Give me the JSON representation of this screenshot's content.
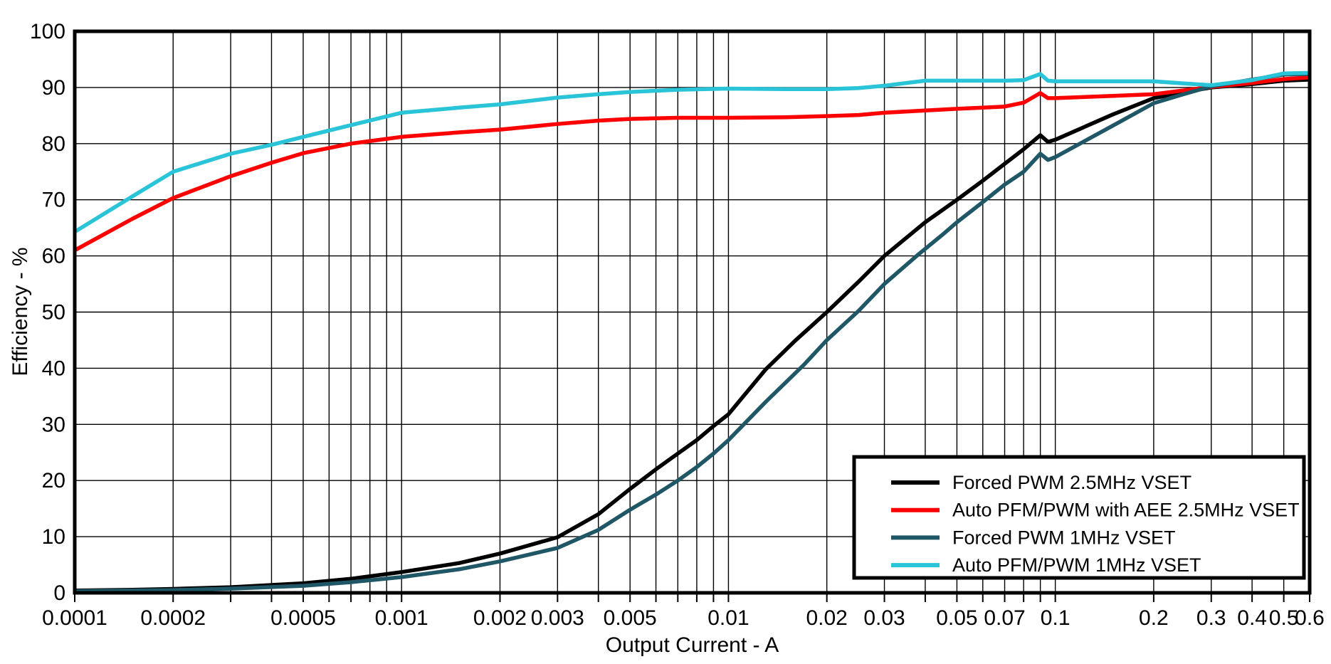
{
  "figure": {
    "background": "#ffffff",
    "grid_color": "#000000",
    "border_color": "#000000",
    "x_axis": {
      "title": "Output Current - A",
      "scale": "log",
      "min": 0.0001,
      "max": 0.6,
      "ticks": [
        {
          "v": 0.0001,
          "label": "0.0001"
        },
        {
          "v": 0.0002,
          "label": "0.0002"
        },
        {
          "v": 0.0005,
          "label": "0.0005"
        },
        {
          "v": 0.001,
          "label": "0.001"
        },
        {
          "v": 0.002,
          "label": "0.002"
        },
        {
          "v": 0.003,
          "label": "0.003"
        },
        {
          "v": 0.005,
          "label": "0.005"
        },
        {
          "v": 0.01,
          "label": "0.01"
        },
        {
          "v": 0.02,
          "label": "0.02"
        },
        {
          "v": 0.03,
          "label": "0.03"
        },
        {
          "v": 0.05,
          "label": "0.05"
        },
        {
          "v": 0.07,
          "label": "0.07"
        },
        {
          "v": 0.1,
          "label": "0.1"
        },
        {
          "v": 0.2,
          "label": "0.2"
        },
        {
          "v": 0.3,
          "label": "0.3"
        },
        {
          "v": 0.4,
          "label": "0.4"
        },
        {
          "v": 0.5,
          "label": "0.5"
        },
        {
          "v": 0.6,
          "label": "0.6"
        }
      ]
    },
    "y_axis": {
      "title": "Efficiency - %",
      "min": 0,
      "max": 100,
      "tick_step": 10,
      "tick_labels": [
        "0",
        "10",
        "20",
        "30",
        "40",
        "50",
        "60",
        "70",
        "80",
        "90",
        "100"
      ]
    }
  },
  "chart_data": {
    "type": "line",
    "title": "",
    "xlabel": "Output Current - A",
    "ylabel": "Efficiency - %",
    "x_scale": "log",
    "xlim": [
      0.0001,
      0.6
    ],
    "ylim": [
      0,
      100
    ],
    "grid": true,
    "legend_position": "inside lower right",
    "series": [
      {
        "name": "Forced PWM 2.5MHz VSET",
        "color": "#000000",
        "points": [
          [
            0.0001,
            0.4
          ],
          [
            0.00015,
            0.55
          ],
          [
            0.0002,
            0.7
          ],
          [
            0.0003,
            1.0
          ],
          [
            0.0005,
            1.7
          ],
          [
            0.0007,
            2.5
          ],
          [
            0.001,
            3.7
          ],
          [
            0.0015,
            5.3
          ],
          [
            0.002,
            7.0
          ],
          [
            0.003,
            9.9
          ],
          [
            0.004,
            14.0
          ],
          [
            0.005,
            18.5
          ],
          [
            0.006,
            22.0
          ],
          [
            0.007,
            24.8
          ],
          [
            0.008,
            27.2
          ],
          [
            0.009,
            29.7
          ],
          [
            0.01,
            31.8
          ],
          [
            0.013,
            39.8
          ],
          [
            0.016,
            44.9
          ],
          [
            0.02,
            50.0
          ],
          [
            0.025,
            55.4
          ],
          [
            0.03,
            60.0
          ],
          [
            0.04,
            66.0
          ],
          [
            0.05,
            70.0
          ],
          [
            0.06,
            73.4
          ],
          [
            0.07,
            76.4
          ],
          [
            0.08,
            79.0
          ],
          [
            0.09,
            81.5
          ],
          [
            0.095,
            80.3
          ],
          [
            0.1,
            80.7
          ],
          [
            0.15,
            85.2
          ],
          [
            0.2,
            88.1
          ],
          [
            0.25,
            89.2
          ],
          [
            0.3,
            90.0
          ],
          [
            0.4,
            90.6
          ],
          [
            0.5,
            91.2
          ],
          [
            0.6,
            91.4
          ]
        ]
      },
      {
        "name": "Auto PFM/PWM with AEE 2.5MHz VSET",
        "color": "#fe0000",
        "points": [
          [
            0.0001,
            61.0
          ],
          [
            0.00015,
            66.6
          ],
          [
            0.0002,
            70.3
          ],
          [
            0.0003,
            74.2
          ],
          [
            0.0004,
            76.6
          ],
          [
            0.0005,
            78.3
          ],
          [
            0.0007,
            80.0
          ],
          [
            0.001,
            81.2
          ],
          [
            0.0015,
            82.0
          ],
          [
            0.002,
            82.5
          ],
          [
            0.003,
            83.5
          ],
          [
            0.004,
            84.1
          ],
          [
            0.005,
            84.4
          ],
          [
            0.007,
            84.6
          ],
          [
            0.01,
            84.6
          ],
          [
            0.015,
            84.7
          ],
          [
            0.02,
            84.9
          ],
          [
            0.025,
            85.1
          ],
          [
            0.03,
            85.5
          ],
          [
            0.04,
            85.9
          ],
          [
            0.05,
            86.2
          ],
          [
            0.06,
            86.4
          ],
          [
            0.07,
            86.6
          ],
          [
            0.08,
            87.3
          ],
          [
            0.09,
            89.0
          ],
          [
            0.095,
            88.1
          ],
          [
            0.1,
            88.1
          ],
          [
            0.15,
            88.5
          ],
          [
            0.2,
            88.8
          ],
          [
            0.3,
            90.1
          ],
          [
            0.4,
            90.8
          ],
          [
            0.5,
            91.5
          ],
          [
            0.6,
            91.8
          ]
        ]
      },
      {
        "name": "Forced PWM 1MHz VSET",
        "color": "#1f5766",
        "points": [
          [
            0.0001,
            0.3
          ],
          [
            0.0002,
            0.5
          ],
          [
            0.0003,
            0.75
          ],
          [
            0.0005,
            1.25
          ],
          [
            0.0007,
            1.9
          ],
          [
            0.001,
            2.8
          ],
          [
            0.0015,
            4.2
          ],
          [
            0.002,
            5.6
          ],
          [
            0.003,
            8.0
          ],
          [
            0.004,
            11.2
          ],
          [
            0.005,
            14.8
          ],
          [
            0.006,
            17.5
          ],
          [
            0.007,
            20.0
          ],
          [
            0.008,
            22.4
          ],
          [
            0.009,
            24.8
          ],
          [
            0.01,
            27.2
          ],
          [
            0.013,
            34.0
          ],
          [
            0.017,
            40.6
          ],
          [
            0.02,
            45.0
          ],
          [
            0.025,
            50.2
          ],
          [
            0.03,
            55.0
          ],
          [
            0.038,
            60.2
          ],
          [
            0.045,
            63.7
          ],
          [
            0.05,
            66.0
          ],
          [
            0.06,
            69.6
          ],
          [
            0.07,
            72.7
          ],
          [
            0.08,
            75.0
          ],
          [
            0.09,
            78.2
          ],
          [
            0.095,
            77.1
          ],
          [
            0.1,
            77.6
          ],
          [
            0.15,
            83.2
          ],
          [
            0.2,
            87.2
          ],
          [
            0.25,
            88.9
          ],
          [
            0.3,
            90.2
          ],
          [
            0.4,
            91.4
          ],
          [
            0.5,
            92.3
          ],
          [
            0.6,
            92.4
          ]
        ]
      },
      {
        "name": "Auto PFM/PWM 1MHz VSET",
        "color": "#29c4d8",
        "points": [
          [
            0.0001,
            64.3
          ],
          [
            0.00015,
            70.6
          ],
          [
            0.0002,
            75.0
          ],
          [
            0.0003,
            78.2
          ],
          [
            0.0004,
            79.8
          ],
          [
            0.0005,
            81.2
          ],
          [
            0.0007,
            83.3
          ],
          [
            0.001,
            85.5
          ],
          [
            0.0015,
            86.4
          ],
          [
            0.002,
            87.0
          ],
          [
            0.003,
            88.2
          ],
          [
            0.004,
            88.8
          ],
          [
            0.005,
            89.2
          ],
          [
            0.007,
            89.6
          ],
          [
            0.01,
            89.8
          ],
          [
            0.015,
            89.7
          ],
          [
            0.02,
            89.7
          ],
          [
            0.025,
            89.9
          ],
          [
            0.03,
            90.3
          ],
          [
            0.035,
            90.8
          ],
          [
            0.04,
            91.2
          ],
          [
            0.05,
            91.2
          ],
          [
            0.06,
            91.2
          ],
          [
            0.07,
            91.2
          ],
          [
            0.08,
            91.3
          ],
          [
            0.09,
            92.4
          ],
          [
            0.095,
            91.2
          ],
          [
            0.1,
            91.1
          ],
          [
            0.15,
            91.1
          ],
          [
            0.2,
            91.1
          ],
          [
            0.25,
            90.7
          ],
          [
            0.3,
            90.4
          ],
          [
            0.4,
            91.3
          ],
          [
            0.5,
            92.5
          ],
          [
            0.6,
            92.6
          ]
        ]
      }
    ]
  }
}
